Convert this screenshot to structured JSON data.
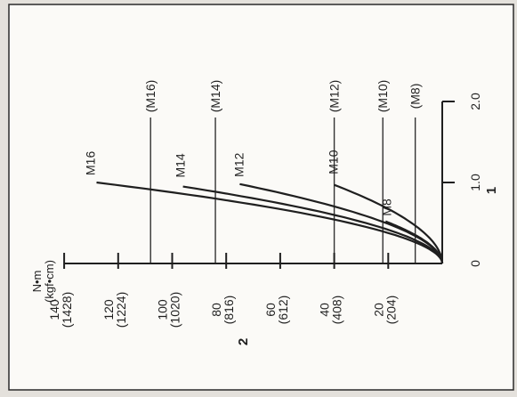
{
  "chart_data": {
    "type": "line",
    "orientation": "rotated-90-ccw",
    "x_axis": {
      "label": "1",
      "ticks": [
        {
          "value": 0,
          "label": "0"
        },
        {
          "value": 1.0,
          "label": "1.0"
        },
        {
          "value": 2.0,
          "label": "2.0"
        }
      ],
      "range": [
        0,
        2.0
      ]
    },
    "y_axis": {
      "label": "2",
      "unit_label": "N•m",
      "unit_label_alt": "(kgf•cm)",
      "ticks": [
        {
          "value": 20,
          "label": "20",
          "alt": "(204)"
        },
        {
          "value": 40,
          "label": "40",
          "alt": "(408)"
        },
        {
          "value": 60,
          "label": "60",
          "alt": "(612)"
        },
        {
          "value": 80,
          "label": "80",
          "alt": "(816)"
        },
        {
          "value": 100,
          "label": "100",
          "alt": "(1020)"
        },
        {
          "value": 120,
          "label": "120",
          "alt": "(1224)"
        },
        {
          "value": 140,
          "label": "140",
          "alt": "(1428)"
        }
      ],
      "range": [
        0,
        140
      ]
    },
    "series": [
      {
        "name": "M16",
        "x_end": 1.0,
        "y_end": 128
      },
      {
        "name": "M14",
        "x_end": 0.95,
        "y_end": 96
      },
      {
        "name": "M12",
        "x_end": 0.98,
        "y_end": 75
      },
      {
        "name": "M10",
        "x_end": 0.97,
        "y_end": 40
      },
      {
        "name": "M8",
        "x_end": 0.52,
        "y_end": 21
      }
    ],
    "reference_lines": [
      {
        "name": "(M16)",
        "value": 108
      },
      {
        "name": "(M14)",
        "value": 84
      },
      {
        "name": "(M12)",
        "value": 40
      },
      {
        "name": "(M10)",
        "value": 22
      },
      {
        "name": "(M8)",
        "value": 10
      }
    ],
    "grid": false,
    "legend": "none"
  }
}
